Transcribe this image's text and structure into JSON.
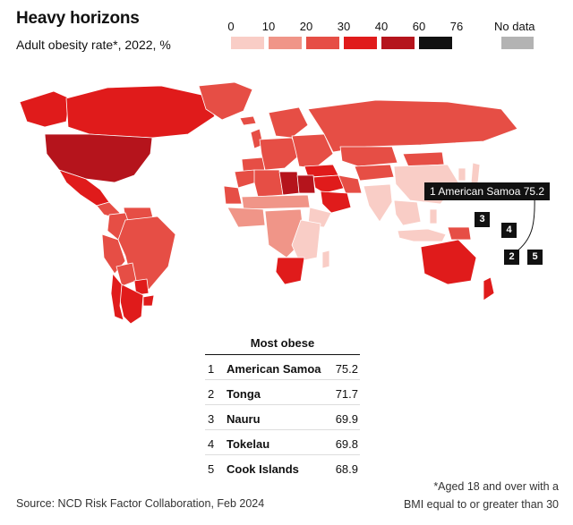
{
  "header": {
    "title": "Heavy horizons",
    "subtitle": "Adult obesity rate*, 2022, %"
  },
  "legend": {
    "labels": [
      "0",
      "10",
      "20",
      "30",
      "40",
      "60",
      "76"
    ],
    "bins": [
      {
        "min": 0,
        "max": 10,
        "color": "#f9cdc6"
      },
      {
        "min": 10,
        "max": 20,
        "color": "#f09588"
      },
      {
        "min": 20,
        "max": 30,
        "color": "#e64e45"
      },
      {
        "min": 30,
        "max": 40,
        "color": "#e01b1b"
      },
      {
        "min": 40,
        "max": 60,
        "color": "#b5141c"
      },
      {
        "min": 60,
        "max": 76,
        "color": "#111111"
      }
    ],
    "no_data_label": "No data",
    "no_data_color": "#b3b3b3"
  },
  "callout": {
    "highlight": "1 American Samoa 75.2",
    "markers": [
      "3",
      "4",
      "2",
      "5"
    ]
  },
  "chart_data": {
    "type": "table",
    "title": "Most obese",
    "rows": [
      {
        "rank": "1",
        "name": "American Samoa",
        "value": 75.2,
        "value_label": "75.2"
      },
      {
        "rank": "2",
        "name": "Tonga",
        "value": 71.7,
        "value_label": "71.7"
      },
      {
        "rank": "3",
        "name": "Nauru",
        "value": 69.9,
        "value_label": "69.9"
      },
      {
        "rank": "4",
        "name": "Tokelau",
        "value": 69.8,
        "value_label": "69.8"
      },
      {
        "rank": "5",
        "name": "Cook Islands",
        "value": 68.9,
        "value_label": "68.9"
      }
    ],
    "map_values": {
      "United States": 41,
      "Canada": 30,
      "Alaska": 33,
      "Greenland": 20,
      "Mexico": 36,
      "Central America": 28,
      "Brazil": 28,
      "Colombia": 22,
      "Peru": 24,
      "Venezuela": 28,
      "Bolivia": 22,
      "Argentina": 32,
      "Chile": 35,
      "Paraguay": 30,
      "Uruguay": 30,
      "Western Europe": 22,
      "Iberia": 23,
      "Scandinavia": 20,
      "United Kingdom": 28,
      "Iceland": 22,
      "Eastern Europe": 27,
      "Russia": 29,
      "Turkey": 36,
      "Middle East": 34,
      "Saudi Arabia": 38,
      "Egypt": 44,
      "Libya": 40,
      "Algeria": 28,
      "Morocco": 26,
      "Mauritania": 20,
      "Sahel": 10,
      "West Africa": 14,
      "Central Africa": 14,
      "East Africa": 7,
      "Horn of Africa": 5,
      "South Africa": 31,
      "Madagascar": 5,
      "Central Asia": 25,
      "Iran": 27,
      "Kazakhstan": 24,
      "India": 7,
      "China": 8,
      "Mongolia": 24,
      "Southeast Asia": 6,
      "Japan": 5,
      "Korea": 7,
      "Indonesia": 9,
      "Philippines": 8,
      "Australia": 32,
      "New Zealand": 33,
      "Papua New Guinea": 24
    }
  },
  "footer": {
    "source": "Source: NCD Risk Factor Collaboration, Feb 2024",
    "footnote_line1": "*Aged 18 and over with a",
    "footnote_line2": "BMI equal to or greater than 30"
  }
}
